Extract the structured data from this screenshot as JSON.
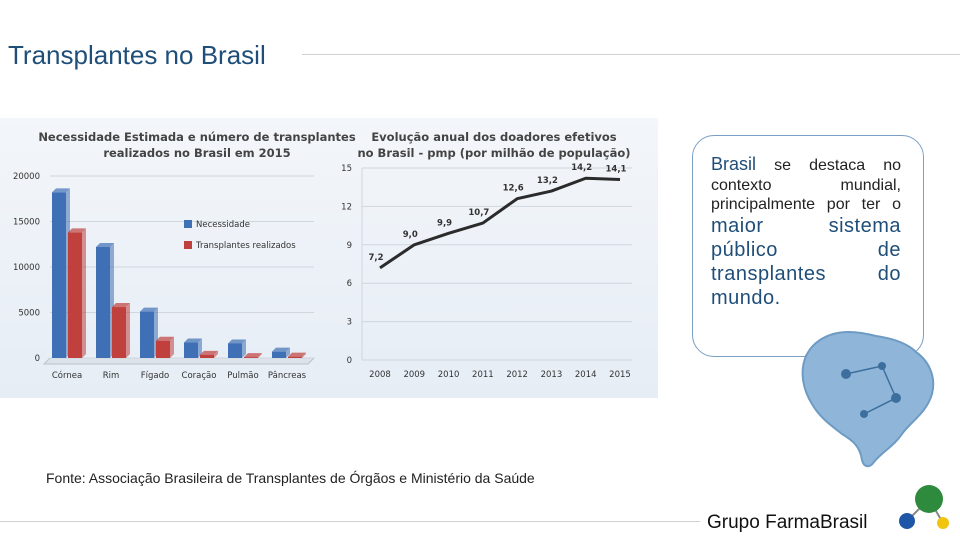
{
  "slide": {
    "title": "Transplantes no Brasil",
    "source": "Fonte: Associação Brasileira de Transplantes de Órgãos e Ministério da Saúde",
    "brand": "Grupo FarmaBrasil"
  },
  "callout": {
    "w1": "Brasil",
    "w2": "se destaca no contexto mundial, principalmente por ter o",
    "w3": "maior sistema público de transplantes do mundo."
  },
  "colors": {
    "necessidade": "#3f6fb5",
    "transplantes": "#c0403d",
    "line": "#2b2b2b",
    "title": "#1f4e79"
  },
  "chart_data": [
    {
      "type": "bar",
      "title_line1": "Necessidade Estimada e número de transplantes",
      "title_line2": "realizados no Brasil em 2015",
      "categories": [
        "Córnea",
        "Rim",
        "Fígado",
        "Coração",
        "Pulmão",
        "Pâncreas"
      ],
      "series": [
        {
          "name": "Necessidade",
          "values": [
            18200,
            12200,
            5100,
            1700,
            1600,
            700
          ]
        },
        {
          "name": "Transplantes realizados",
          "values": [
            13800,
            5600,
            1900,
            350,
            100,
            150
          ]
        }
      ],
      "yticks": [
        "0",
        "5000",
        "10000",
        "15000",
        "20000"
      ],
      "ylim": [
        0,
        20000
      ],
      "legend": "top-center"
    },
    {
      "type": "line",
      "title_line1": "Evolução anual dos doadores efetivos",
      "title_line2": "no Brasil - pmp (por milhão de população)",
      "x": [
        "2008",
        "2009",
        "2010",
        "2011",
        "2012",
        "2013",
        "2014",
        "2015"
      ],
      "values": [
        7.2,
        9.0,
        9.9,
        10.7,
        12.6,
        13.2,
        14.2,
        14.1
      ],
      "labels": [
        "7,2",
        "9,0",
        "9,9",
        "10,7",
        "12,6",
        "13,2",
        "14,2",
        "14,1"
      ],
      "yticks": [
        "0",
        "3",
        "6",
        "9",
        "12",
        "15"
      ],
      "ylim": [
        0,
        15
      ]
    }
  ]
}
